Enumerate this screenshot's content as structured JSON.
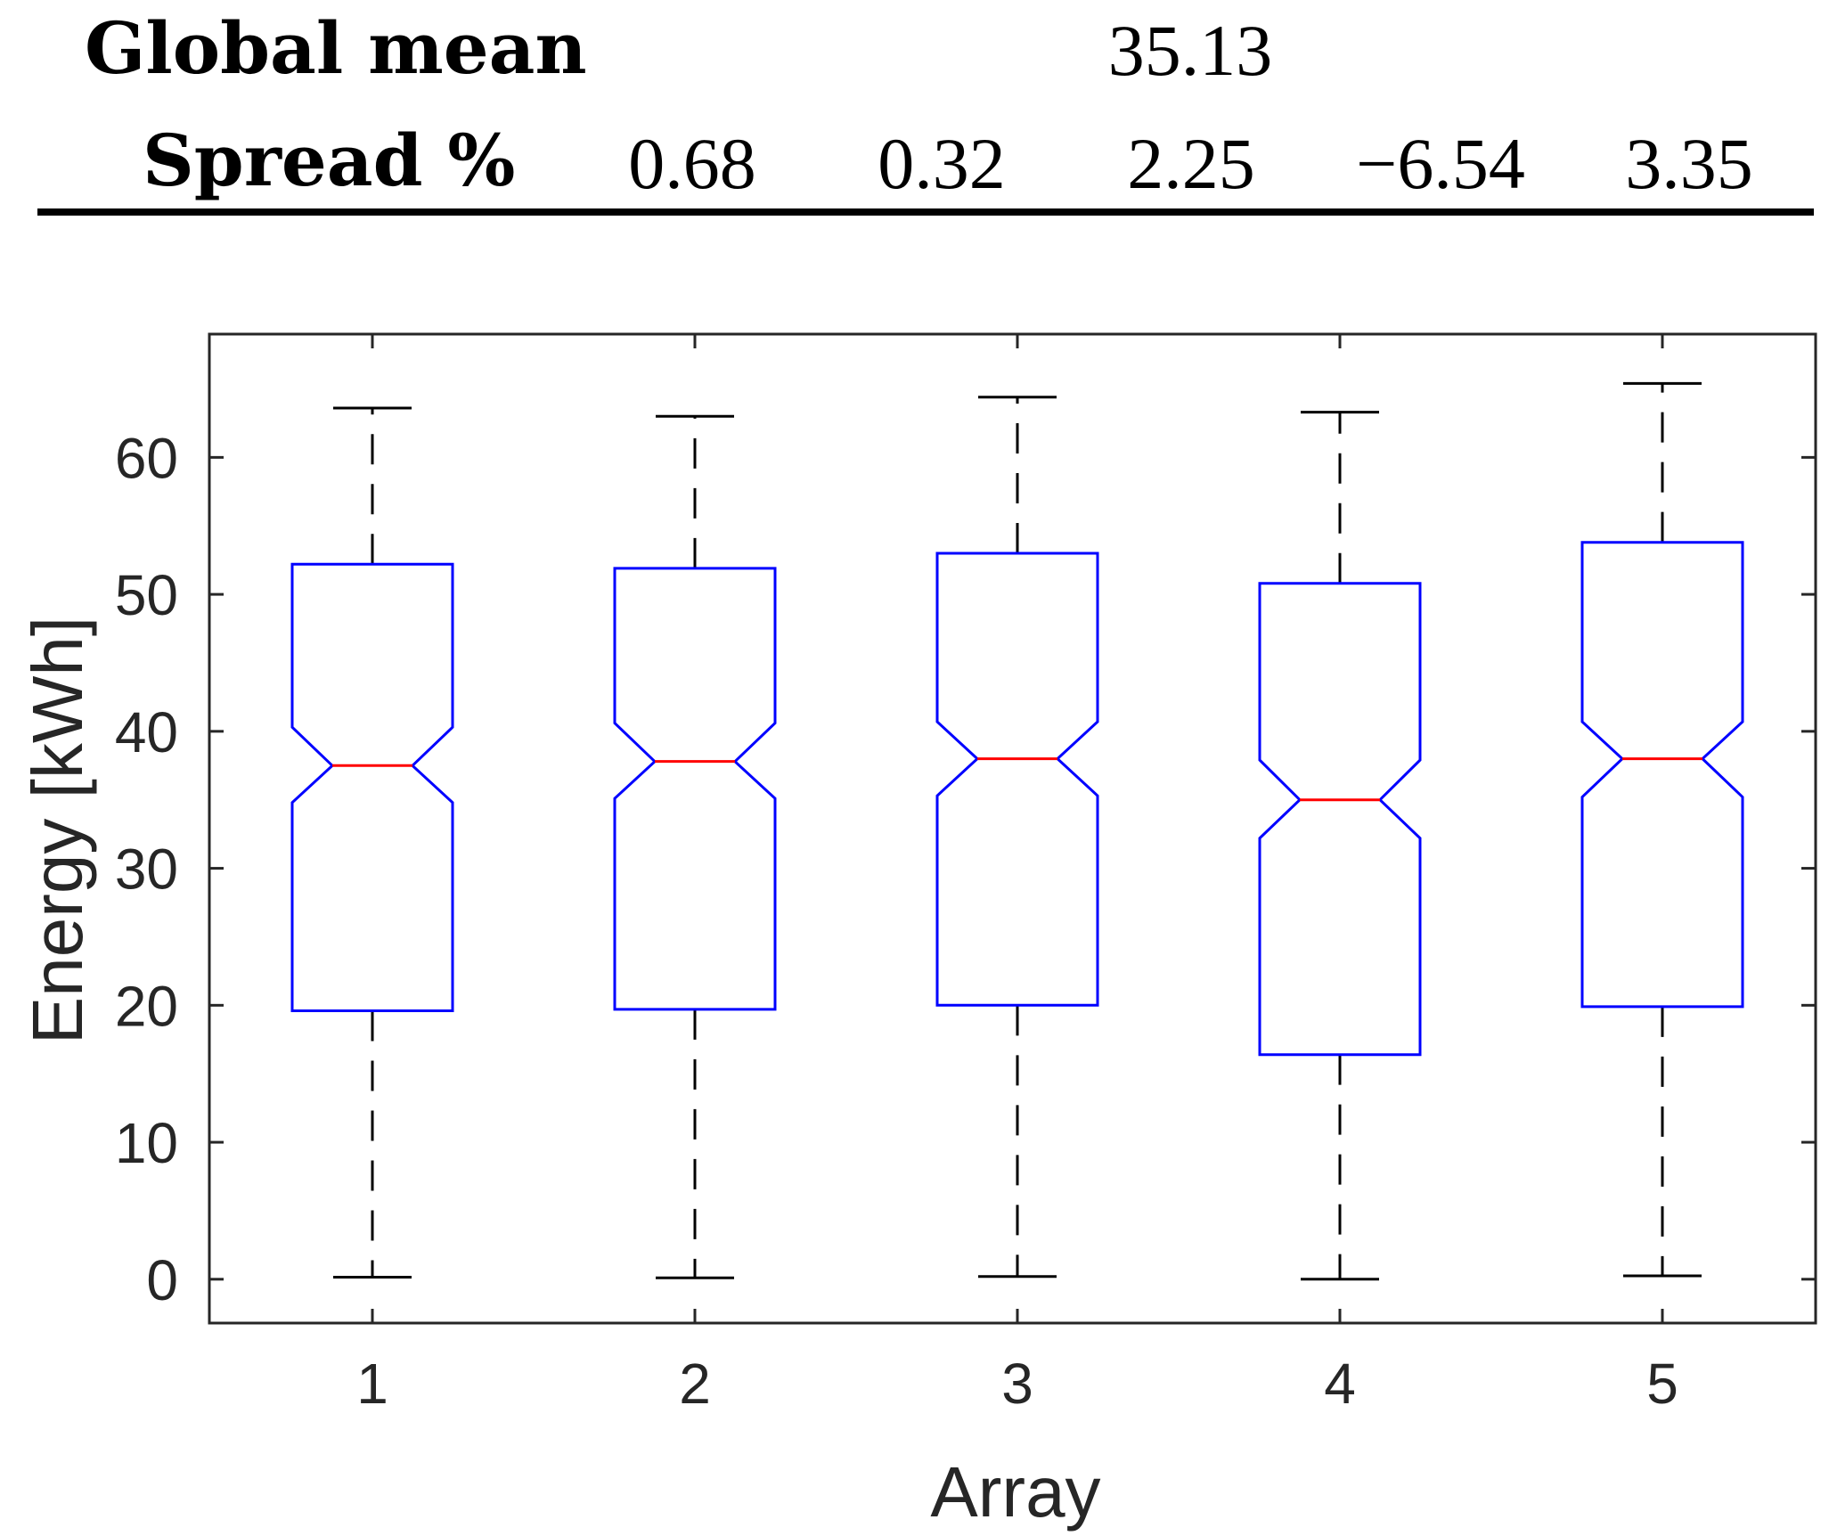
{
  "summary_table": {
    "global_mean_label": "Global mean",
    "global_mean_value": "35.13",
    "spread_label": "Spread %",
    "spread_values": [
      "0.68",
      "0.32",
      "2.25",
      "−6.54",
      "3.35"
    ]
  },
  "chart_data": {
    "type": "boxplot",
    "notched": true,
    "title": "",
    "xlabel": "Array",
    "ylabel": "Energy [kWh]",
    "categories": [
      "1",
      "2",
      "3",
      "4",
      "5"
    ],
    "ylim": [
      -3.2,
      69
    ],
    "yticks": [
      0,
      10,
      20,
      30,
      40,
      50,
      60
    ],
    "boxes": [
      {
        "label": "1",
        "lower_whisker": 0.15,
        "q1": 19.6,
        "notch_low": 34.8,
        "median": 37.5,
        "notch_high": 40.3,
        "q3": 52.2,
        "upper_whisker": 63.6
      },
      {
        "label": "2",
        "lower_whisker": 0.1,
        "q1": 19.7,
        "notch_low": 35.1,
        "median": 37.8,
        "notch_high": 40.6,
        "q3": 51.9,
        "upper_whisker": 63.0
      },
      {
        "label": "3",
        "lower_whisker": 0.2,
        "q1": 20.0,
        "notch_low": 35.3,
        "median": 38.0,
        "notch_high": 40.7,
        "q3": 53.0,
        "upper_whisker": 64.4
      },
      {
        "label": "4",
        "lower_whisker": 0.0,
        "q1": 16.4,
        "notch_low": 32.2,
        "median": 35.0,
        "notch_high": 37.9,
        "q3": 50.8,
        "upper_whisker": 63.3
      },
      {
        "label": "5",
        "lower_whisker": 0.25,
        "q1": 19.9,
        "notch_low": 35.2,
        "median": 38.0,
        "notch_high": 40.7,
        "q3": 53.8,
        "upper_whisker": 65.4
      }
    ],
    "colors": {
      "box": "#0000ff",
      "median": "#ff0000",
      "whisker": "#000000",
      "axis": "#262626",
      "rule": "#000000"
    }
  }
}
